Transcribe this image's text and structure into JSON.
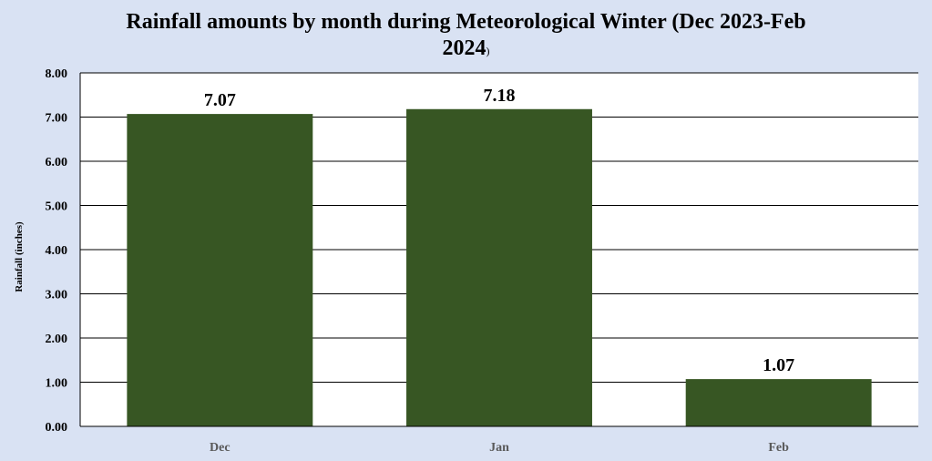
{
  "chart_data": {
    "type": "bar",
    "title_main": "Rainfall amounts by month during Meteorological Winter (Dec 2023-Feb",
    "title_line2": "2024",
    "title_paren": ")",
    "xlabel": "",
    "ylabel": "Rainfall (inches)",
    "categories": [
      "Dec",
      "Jan",
      "Feb"
    ],
    "values": [
      7.07,
      7.18,
      1.07
    ],
    "data_labels": [
      "7.07",
      "7.18",
      "1.07"
    ],
    "ylim": [
      0,
      8
    ],
    "yticks": [
      "0.00",
      "1.00",
      "2.00",
      "3.00",
      "4.00",
      "5.00",
      "6.00",
      "7.00",
      "8.00"
    ],
    "grid": true,
    "legend": "none",
    "colors": {
      "bar": "#375623",
      "background": "#d9e2f3",
      "plot_area": "#ffffff",
      "gridline": "#000000"
    }
  }
}
